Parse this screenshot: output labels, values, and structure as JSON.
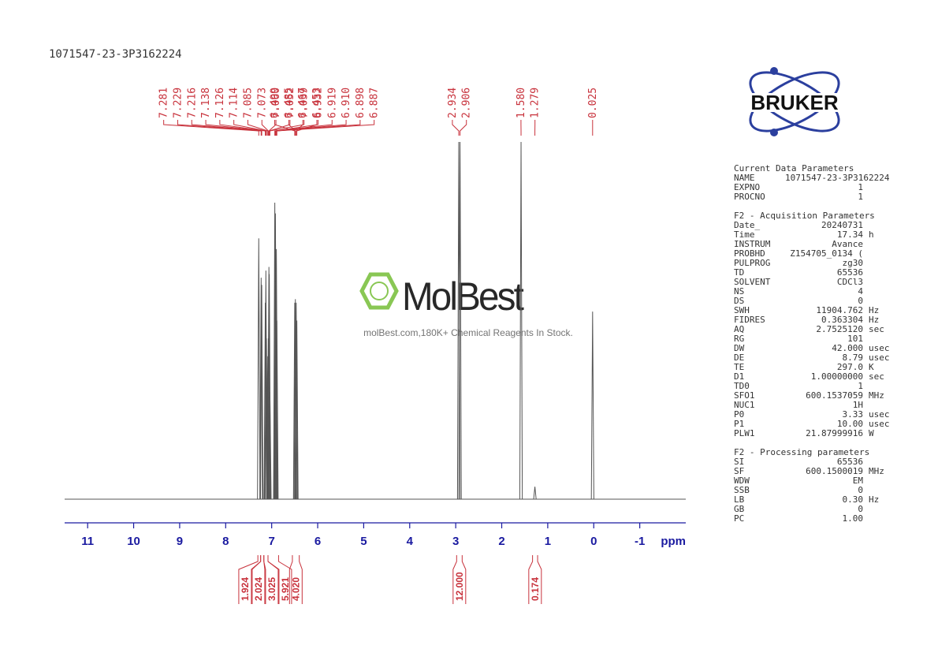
{
  "header": "1071547-23-3P3162224",
  "logo": "BRUKER",
  "watermark": {
    "name": "MolBest",
    "tagline": "molBest.com,180K+ Chemical Reagents In Stock."
  },
  "chart_data": {
    "type": "nmr",
    "x_label": "ppm",
    "xlim": [
      11.5,
      -2.0
    ],
    "xticks": [
      11,
      10,
      9,
      8,
      7,
      6,
      5,
      4,
      3,
      2,
      1,
      0,
      -1
    ],
    "ylim": [
      0,
      100
    ],
    "color": "#555555",
    "label_color": "#c8323c",
    "peaks": {
      "x": [
        7.281,
        7.229,
        7.216,
        7.138,
        7.126,
        7.114,
        7.085,
        7.073,
        7.06,
        7.052,
        7.039,
        6.932,
        6.919,
        6.91,
        6.898,
        6.887,
        6.499,
        6.485,
        6.467,
        6.453,
        2.934,
        2.906,
        1.58,
        1.279,
        0.025
      ],
      "labels": [
        "7.281",
        "7.229",
        "7.216",
        "7.138",
        "7.126",
        "7.114",
        "7.085",
        "7.073",
        "7.060",
        "7.052",
        "7.039",
        "6.932",
        "6.919",
        "6.910",
        "6.898",
        "6.887",
        "6.499",
        "6.485",
        "6.467",
        "6.453",
        "2.934",
        "2.906",
        "1.580",
        "1.279",
        "0.025"
      ],
      "values": [
        73,
        62,
        60,
        55,
        64,
        45,
        40,
        45,
        65,
        63,
        30,
        83,
        80,
        60,
        70,
        50,
        55,
        56,
        55,
        50,
        100,
        100,
        100,
        3.5,
        52.5
      ]
    },
    "integrals": {
      "ranges": [
        [
          7.3,
          7.24
        ],
        [
          7.24,
          7.17
        ],
        [
          7.17,
          7.08
        ],
        [
          7.08,
          6.85
        ],
        [
          6.55,
          6.4
        ],
        [
          2.98,
          2.86
        ],
        [
          1.33,
          1.22
        ]
      ],
      "values": [
        1.924,
        2.024,
        3.025,
        5.921,
        4.02,
        12,
        0.174
      ],
      "value_labels": [
        "1.924",
        "2.024",
        "3.025",
        "5.921",
        "4.020",
        "12.000",
        "0.174"
      ]
    }
  },
  "parameters": [
    {
      "title": "Current Data Parameters",
      "rows": [
        [
          "NAME",
          "1071547-23-3P3162224"
        ],
        [
          "EXPNO",
          "1"
        ],
        [
          "PROCNO",
          "1"
        ]
      ]
    },
    {
      "title": "F2 - Acquisition Parameters",
      "rows": [
        [
          "Date_",
          "20240731"
        ],
        [
          "Time",
          "17.34",
          "h"
        ],
        [
          "INSTRUM",
          "Avance"
        ],
        [
          "PROBHD",
          "Z154705_0134 ("
        ],
        [
          "PULPROG",
          "zg30"
        ],
        [
          "TD",
          "65536"
        ],
        [
          "SOLVENT",
          "CDCl3"
        ],
        [
          "NS",
          "4"
        ],
        [
          "DS",
          "0"
        ],
        [
          "SWH",
          "11904.762",
          "Hz"
        ],
        [
          "FIDRES",
          "0.363304",
          "Hz"
        ],
        [
          "AQ",
          "2.7525120",
          "sec"
        ],
        [
          "RG",
          "101"
        ],
        [
          "DW",
          "42.000",
          "usec"
        ],
        [
          "DE",
          "8.79",
          "usec"
        ],
        [
          "TE",
          "297.0",
          "K"
        ],
        [
          "D1",
          "1.00000000",
          "sec"
        ],
        [
          "TD0",
          "1"
        ],
        [
          "SFO1",
          "600.1537059",
          "MHz"
        ],
        [
          "NUC1",
          "1H"
        ],
        [
          "P0",
          "3.33",
          "usec"
        ],
        [
          "P1",
          "10.00",
          "usec"
        ],
        [
          "PLW1",
          "21.87999916",
          "W"
        ]
      ]
    },
    {
      "title": "F2 - Processing parameters",
      "rows": [
        [
          "SI",
          "65536"
        ],
        [
          "SF",
          "600.1500019",
          "MHz"
        ],
        [
          "WDW",
          "EM"
        ],
        [
          "SSB",
          "0"
        ],
        [
          "LB",
          "0.30",
          "Hz"
        ],
        [
          "GB",
          "0"
        ],
        [
          "PC",
          "1.00"
        ]
      ]
    }
  ]
}
